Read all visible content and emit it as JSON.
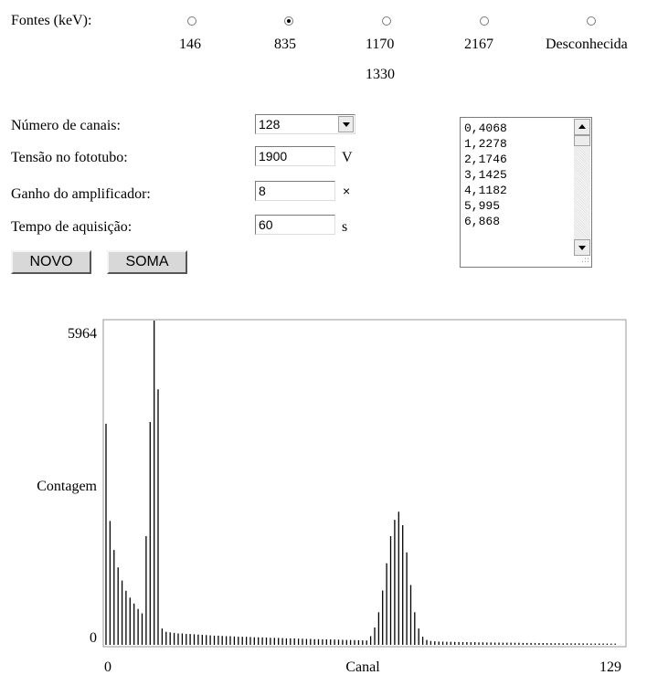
{
  "sources": {
    "label": "Fontes (keV):",
    "options": [
      {
        "line1": "146",
        "line2": "",
        "selected": false
      },
      {
        "line1": "835",
        "line2": "",
        "selected": true
      },
      {
        "line1": "1170",
        "line2": "1330",
        "selected": false
      },
      {
        "line1": "2167",
        "line2": "",
        "selected": false
      },
      {
        "line1": "Desconhecida",
        "line2": "",
        "selected": false
      }
    ]
  },
  "form": {
    "channels": {
      "label": "Número de canais:",
      "value": "128"
    },
    "voltage": {
      "label": "Tensão no fototubo:",
      "value": "1900",
      "unit": "V"
    },
    "gain": {
      "label": "Ganho do amplificador:",
      "value": "8",
      "unit": "×"
    },
    "time": {
      "label": "Tempo de aquisição:",
      "value": "60",
      "unit": "s"
    }
  },
  "buttons": {
    "new": "NOVO",
    "sum": "SOMA"
  },
  "output_lines": [
    "0,4068",
    "1,2278",
    "2,1746",
    "3,1425",
    "4,1182",
    "5,995",
    "6,868"
  ],
  "chart_data": {
    "type": "bar",
    "ylabel": "Contagem",
    "xlabel": "Canal",
    "x_tick_labels": [
      "0",
      "129"
    ],
    "y_tick_labels": [
      "0",
      "5964"
    ],
    "xlim": [
      0,
      129
    ],
    "ylim": [
      0,
      5964
    ],
    "x": [
      0,
      1,
      2,
      3,
      4,
      5,
      6,
      7,
      8,
      9,
      10,
      11,
      12,
      13,
      14,
      15,
      16,
      17,
      18,
      19,
      20,
      21,
      22,
      23,
      24,
      25,
      26,
      27,
      28,
      29,
      30,
      31,
      32,
      33,
      34,
      35,
      36,
      37,
      38,
      39,
      40,
      41,
      42,
      43,
      44,
      45,
      46,
      47,
      48,
      49,
      50,
      51,
      52,
      53,
      54,
      55,
      56,
      57,
      58,
      59,
      60,
      61,
      62,
      63,
      64,
      65,
      66,
      67,
      68,
      69,
      70,
      71,
      72,
      73,
      74,
      75,
      76,
      77,
      78,
      79,
      80,
      81,
      82,
      83,
      84,
      85,
      86,
      87,
      88,
      89,
      90,
      91,
      92,
      93,
      94,
      95,
      96,
      97,
      98,
      99,
      100,
      101,
      102,
      103,
      104,
      105,
      106,
      107,
      108,
      109,
      110,
      111,
      112,
      113,
      114,
      115,
      116,
      117,
      118,
      119,
      120,
      121,
      122,
      123,
      124,
      125,
      126,
      127
    ],
    "values": [
      4068,
      2278,
      1746,
      1425,
      1182,
      995,
      868,
      760,
      660,
      580,
      2000,
      4100,
      5964,
      4700,
      300,
      240,
      230,
      220,
      210,
      210,
      200,
      200,
      195,
      190,
      185,
      180,
      175,
      170,
      170,
      165,
      160,
      160,
      155,
      150,
      150,
      148,
      145,
      140,
      140,
      138,
      135,
      130,
      130,
      128,
      125,
      120,
      120,
      118,
      115,
      112,
      110,
      110,
      105,
      105,
      102,
      100,
      100,
      98,
      95,
      92,
      90,
      90,
      88,
      85,
      82,
      80,
      160,
      320,
      600,
      1000,
      1500,
      2000,
      2300,
      2450,
      2200,
      1700,
      1100,
      600,
      300,
      150,
      90,
      70,
      65,
      60,
      58,
      56,
      55,
      54,
      52,
      50,
      50,
      48,
      48,
      46,
      45,
      44,
      44,
      42,
      42,
      40,
      40,
      40,
      38,
      38,
      36,
      36,
      35,
      35,
      34,
      33,
      32,
      32,
      31,
      30,
      30,
      30,
      29,
      28,
      28,
      28,
      27,
      26,
      26,
      25,
      25,
      24,
      24,
      23
    ]
  }
}
